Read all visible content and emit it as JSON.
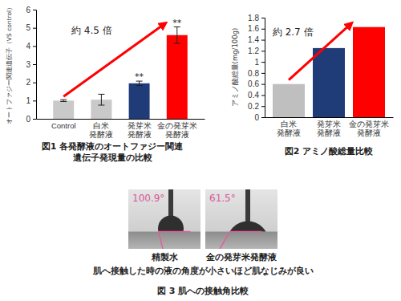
{
  "chart_data": [
    {
      "type": "bar",
      "title": "図1 各発酵液のオートファジー関連\n遺伝子発現量の比較",
      "y_label": "オートファジー関連遺伝子（VS control）",
      "categories": [
        "Control",
        "白米\n発酵液",
        "発芽米\n発酵液",
        "金の発芽米\n発酵液"
      ],
      "values": [
        1.0,
        1.05,
        1.95,
        4.6
      ],
      "errors": [
        0.05,
        0.3,
        0.12,
        0.45
      ],
      "significance": [
        null,
        null,
        "**",
        "**"
      ],
      "colors": [
        "#c9c9c9",
        "#c9c9c9",
        "#1f3b78",
        "#ff0000"
      ],
      "annotations": [
        "約 4.5 倍"
      ],
      "ylim": [
        0,
        6
      ],
      "yticks": [
        0,
        1,
        2,
        3,
        4,
        5,
        6
      ],
      "grid": false
    },
    {
      "type": "bar",
      "title": "図2 アミノ酸総量比較",
      "y_label": "アミノ酸総量(mg/100g)",
      "categories": [
        "白米\n発酵液",
        "発芽米\n発酵液",
        "金の発芽米\n発酵液"
      ],
      "values": [
        0.6,
        1.25,
        1.63
      ],
      "colors": [
        "#bfbfbf",
        "#1f3b78",
        "#ff0000"
      ],
      "annotations": [
        "約 2.7 倍"
      ],
      "ylim": [
        0,
        1.8
      ],
      "yticks": [
        0,
        0.2,
        0.4,
        0.6,
        0.8,
        1,
        1.2,
        1.4,
        1.6,
        1.8
      ],
      "grid": false
    }
  ],
  "figure3": {
    "panels": [
      {
        "angle": "100.9°",
        "label": "精製水"
      },
      {
        "angle": "61.5°",
        "label": "金の発芽米発酵液"
      }
    ],
    "note": "肌へ接触した時の液の角度が小さいほど肌なじみが良い",
    "caption": "図 3 肌への接触角比較"
  }
}
